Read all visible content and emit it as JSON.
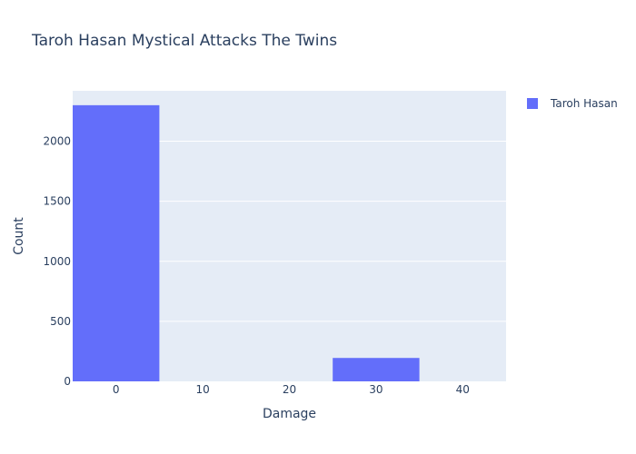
{
  "chart_data": {
    "type": "bar",
    "title": "Taroh Hasan Mystical Attacks The Twins",
    "xlabel": "Damage",
    "ylabel": "Count",
    "x_ticks": [
      "0",
      "10",
      "20",
      "30",
      "40"
    ],
    "y_ticks": [
      "0",
      "500",
      "1000",
      "1500",
      "2000"
    ],
    "xlim": [
      -5,
      45
    ],
    "ylim": [
      0,
      2420
    ],
    "bin_width": 10,
    "series": [
      {
        "name": "Taroh Hasan",
        "color": "#636efa",
        "bins": [
          {
            "x": 0,
            "count": 2300
          },
          {
            "x": 10,
            "count": 0
          },
          {
            "x": 20,
            "count": 0
          },
          {
            "x": 30,
            "count": 195
          },
          {
            "x": 40,
            "count": 0
          }
        ]
      }
    ],
    "legend_position": "top-right",
    "grid": true,
    "plot_background": "#e5ecf6"
  }
}
